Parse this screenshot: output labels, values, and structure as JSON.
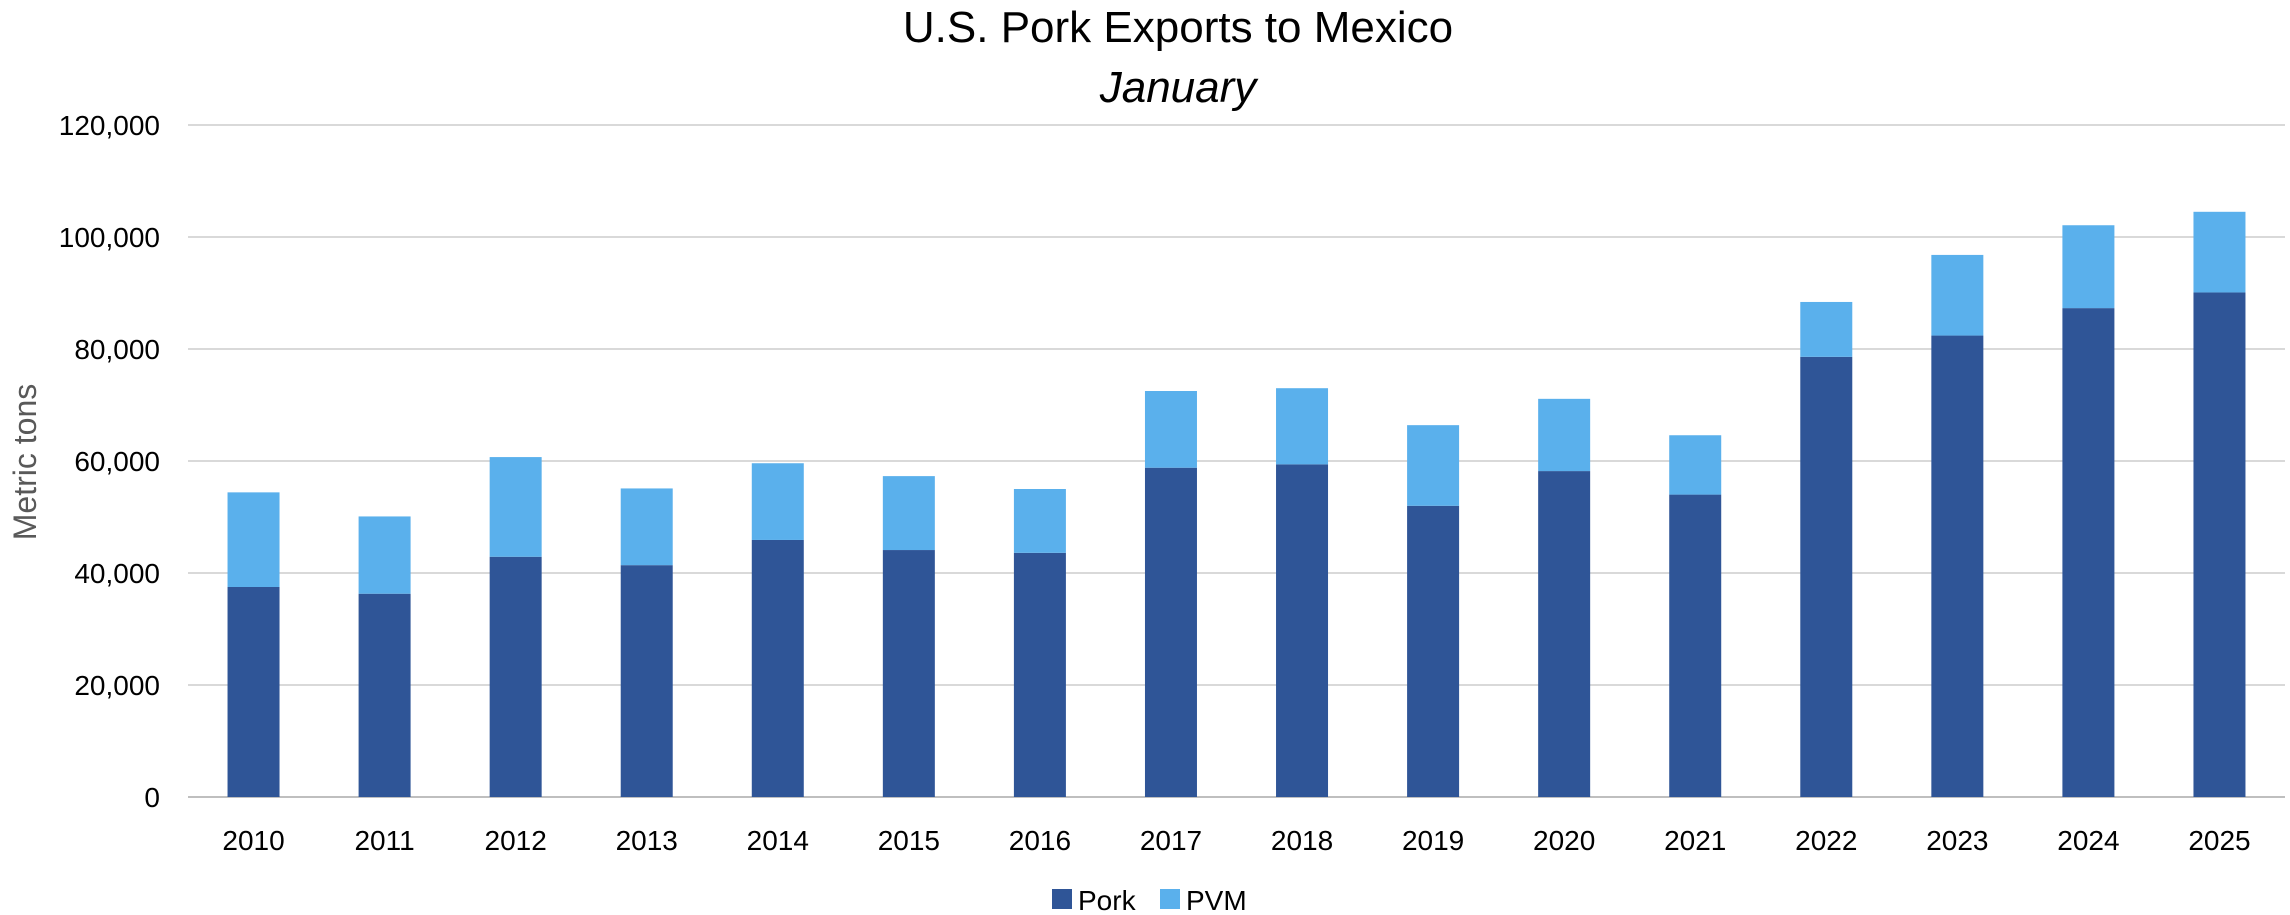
{
  "chart_data": {
    "type": "bar",
    "stacked": true,
    "title": "U.S. Pork Exports to Mexico",
    "subtitle": "January",
    "xlabel": "",
    "ylabel": "Metric tons",
    "ylim": [
      0,
      120000
    ],
    "yticks": [
      0,
      20000,
      40000,
      60000,
      80000,
      100000,
      120000
    ],
    "ytick_labels": [
      "0",
      "20,000",
      "40,000",
      "60,000",
      "80,000",
      "100,000",
      "120,000"
    ],
    "grid": true,
    "legend_position": "bottom-center",
    "categories": [
      "2010",
      "2011",
      "2012",
      "2013",
      "2014",
      "2015",
      "2016",
      "2017",
      "2018",
      "2019",
      "2020",
      "2021",
      "2022",
      "2023",
      "2024",
      "2025"
    ],
    "series": [
      {
        "name": "Pork",
        "color": "#2f5597",
        "values": [
          37500,
          36300,
          42900,
          41400,
          45900,
          44100,
          43600,
          58800,
          59400,
          52000,
          58200,
          54000,
          78600,
          82400,
          87300,
          90100
        ]
      },
      {
        "name": "PVM",
        "color": "#5ab0ec",
        "values": [
          16900,
          13800,
          17800,
          13700,
          13700,
          13200,
          11400,
          13700,
          13600,
          14400,
          12900,
          10600,
          9800,
          14400,
          14800,
          14400
        ]
      }
    ]
  }
}
